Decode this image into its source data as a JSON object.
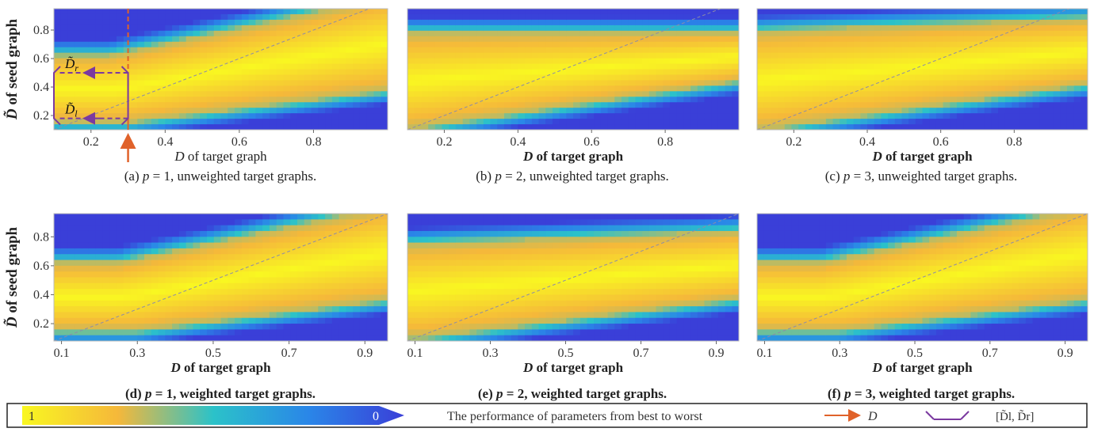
{
  "colors": {
    "best": "#f9f721",
    "worst": "#3a3fd8",
    "arrow_D": "#e0622a",
    "bracket": "#7b3aa0",
    "diagonal": "#8c8ca8"
  },
  "chart_data": [
    {
      "id": "a",
      "type": "heatmap",
      "caption_prefix": "(a) ",
      "caption_p": "p",
      "caption_suffix": " = 1, unweighted target graphs.",
      "xlabel_italic": "D",
      "xlabel_rest": " of target graph",
      "ylabel_text": "of seed graph",
      "ylabel_symbol": "D̃",
      "x_range": [
        0.1,
        1.0
      ],
      "y_range": [
        0.1,
        0.95
      ],
      "x_ticks": [
        "0.2",
        "0.4",
        "0.6",
        "0.8"
      ],
      "y_ticks": [
        "0.2",
        "0.4",
        "0.6",
        "0.8"
      ],
      "diagonal": true,
      "annotation": {
        "D_value": 0.3,
        "D_tilde_l": 0.18,
        "D_tilde_r": 0.5,
        "label_r_main": "D̃",
        "label_r_sub": "r",
        "label_l_main": "D̃",
        "label_l_sub": "l"
      }
    },
    {
      "id": "b",
      "type": "heatmap",
      "caption_prefix": "(b) ",
      "caption_p": "p",
      "caption_suffix": " = 2, unweighted target graphs.",
      "xlabel_italic": "D",
      "xlabel_rest": " of target graph",
      "x_range": [
        0.1,
        1.0
      ],
      "y_range": [
        0.1,
        0.95
      ],
      "x_ticks": [
        "0.2",
        "0.4",
        "0.6",
        "0.8"
      ],
      "diagonal": true
    },
    {
      "id": "c",
      "type": "heatmap",
      "caption_prefix": "(c) ",
      "caption_p": "p",
      "caption_suffix": " = 3, unweighted target graphs.",
      "xlabel_italic": "D",
      "xlabel_rest": " of target graph",
      "x_range": [
        0.1,
        1.0
      ],
      "y_range": [
        0.1,
        0.95
      ],
      "x_ticks": [
        "0.2",
        "0.4",
        "0.6",
        "0.8"
      ],
      "diagonal": true
    },
    {
      "id": "d",
      "type": "heatmap",
      "caption_prefix": "(d) ",
      "caption_p": "p",
      "caption_suffix": " = 1, weighted target graphs.",
      "xlabel_italic": "D",
      "xlabel_rest": " of target graph",
      "ylabel_text": "of  seed graph",
      "ylabel_symbol": "D̃",
      "x_range": [
        0.08,
        0.96
      ],
      "y_range": [
        0.08,
        0.96
      ],
      "x_ticks": [
        "0.1",
        "0.3",
        "0.5",
        "0.7",
        "0.9"
      ],
      "y_ticks": [
        "0.2",
        "0.4",
        "0.6",
        "0.8"
      ],
      "diagonal": true
    },
    {
      "id": "e",
      "type": "heatmap",
      "caption_prefix": "(e) ",
      "caption_p": "p",
      "caption_suffix": " = 2, weighted target graphs.",
      "xlabel_italic": "D",
      "xlabel_rest": " of target graph",
      "x_range": [
        0.08,
        0.96
      ],
      "y_range": [
        0.08,
        0.96
      ],
      "x_ticks": [
        "0.1",
        "0.3",
        "0.5",
        "0.7",
        "0.9"
      ],
      "diagonal": true
    },
    {
      "id": "f",
      "type": "heatmap",
      "caption_prefix": "(f) ",
      "caption_p": "p",
      "caption_suffix": " = 3, weighted target graphs.",
      "xlabel_italic": "D",
      "xlabel_rest": " of target graph",
      "x_range": [
        0.08,
        0.96
      ],
      "y_range": [
        0.08,
        0.96
      ],
      "x_ticks": [
        "0.1",
        "0.3",
        "0.5",
        "0.7",
        "0.9"
      ],
      "diagonal": true
    }
  ],
  "legend": {
    "best_label": "1",
    "worst_label": "0",
    "description": "The performance of parameters from best to worst",
    "arrow_label": "D",
    "bracket_label": "[D̃l, D̃r]"
  }
}
